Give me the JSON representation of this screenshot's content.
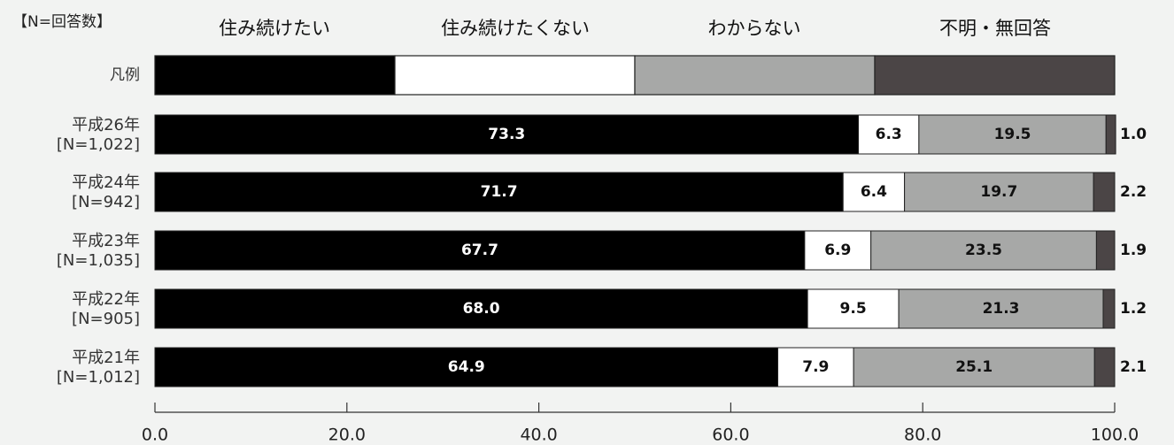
{
  "chart_data": {
    "type": "bar",
    "orientation": "horizontal",
    "stacked": true,
    "n_label": "【N=回答数】",
    "legend_row_label": "凡例",
    "legend_placement": "top",
    "series": [
      {
        "name": "住み続けたい",
        "color": "#000000",
        "values": [
          73.3,
          71.7,
          67.7,
          68.0,
          64.9
        ]
      },
      {
        "name": "住み続けたくない",
        "color": "#ffffff",
        "values": [
          6.3,
          6.4,
          6.9,
          9.5,
          7.9
        ]
      },
      {
        "name": "わからない",
        "color": "#a7a8a7",
        "values": [
          19.5,
          19.7,
          23.5,
          21.3,
          25.1
        ]
      },
      {
        "name": "不明・無回答",
        "color": "#4b4546",
        "values": [
          1.0,
          2.2,
          1.9,
          1.2,
          2.1
        ]
      }
    ],
    "categories": [
      {
        "year": "平成26年",
        "n": "[N=1,022]"
      },
      {
        "year": "平成24年",
        "n": "[N=942]"
      },
      {
        "year": "平成23年",
        "n": "[N=1,035]"
      },
      {
        "year": "平成22年",
        "n": "[N=905]"
      },
      {
        "year": "平成21年",
        "n": "[N=1,012]"
      }
    ],
    "value_labels": [
      [
        "73.3",
        "6.3",
        "19.5",
        "1.0"
      ],
      [
        "71.7",
        "6.4",
        "19.7",
        "2.2"
      ],
      [
        "67.7",
        "6.9",
        "23.5",
        "1.9"
      ],
      [
        "68.0",
        "9.5",
        "21.3",
        "1.2"
      ],
      [
        "64.9",
        "7.9",
        "25.1",
        "2.1"
      ]
    ],
    "xlim": [
      0,
      100
    ],
    "x_ticks": [
      0,
      20,
      40,
      60,
      80,
      100
    ],
    "x_tick_labels": [
      "0.0",
      "20.0",
      "40.0",
      "60.0",
      "80.0",
      "100.0"
    ],
    "grid": false
  }
}
